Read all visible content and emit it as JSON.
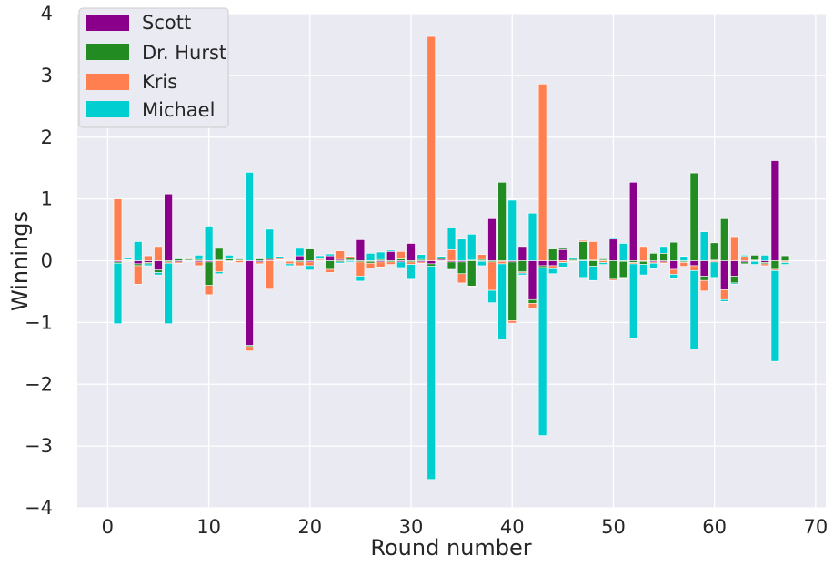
{
  "chart_data": {
    "type": "bar",
    "stacked": true,
    "xlabel": "Round number",
    "ylabel": "Winnings",
    "xlim": [
      -3,
      71
    ],
    "ylim": [
      -4,
      4
    ],
    "x_ticks": [
      0,
      10,
      20,
      30,
      40,
      50,
      60,
      70
    ],
    "y_ticks": [
      -4,
      -3,
      -2,
      -1,
      0,
      1,
      2,
      3,
      4
    ],
    "x_tick_labels": [
      "0",
      "10",
      "20",
      "30",
      "40",
      "50",
      "60",
      "70"
    ],
    "y_tick_labels": [
      "−4",
      "−3",
      "−2",
      "−1",
      "0",
      "1",
      "2",
      "3",
      "4"
    ],
    "grid": true,
    "legend_position": "top-left",
    "rounds": [
      1,
      2,
      3,
      4,
      5,
      6,
      7,
      8,
      9,
      10,
      11,
      12,
      13,
      14,
      15,
      16,
      17,
      18,
      19,
      20,
      21,
      22,
      23,
      24,
      25,
      26,
      27,
      28,
      29,
      30,
      31,
      32,
      33,
      34,
      35,
      36,
      37,
      38,
      39,
      40,
      41,
      42,
      43,
      44,
      45,
      46,
      47,
      48,
      49,
      50,
      51,
      52,
      53,
      54,
      55,
      56,
      57,
      58,
      59,
      60,
      61,
      62,
      63,
      64,
      65,
      66,
      67
    ],
    "series": [
      {
        "name": "Scott",
        "color": "#8b008b",
        "values": [
          -0.02,
          0.01,
          -0.05,
          -0.03,
          -0.15,
          1.08,
          -0.02,
          0.01,
          -0.02,
          -0.02,
          0.01,
          -0.01,
          0.01,
          -1.37,
          -0.02,
          0.02,
          0.01,
          -0.01,
          0.08,
          -0.02,
          0.01,
          0.08,
          0.02,
          0.01,
          0.34,
          -0.01,
          -0.02,
          0.15,
          -0.02,
          0.28,
          -0.02,
          -0.05,
          0.02,
          -0.02,
          -0.02,
          0.01,
          -0.01,
          0.68,
          -0.01,
          -0.02,
          0.23,
          -0.63,
          -0.08,
          -0.08,
          0.18,
          -0.01,
          0.01,
          0.01,
          0.01,
          0.35,
          -0.01,
          1.27,
          -0.01,
          -0.02,
          -0.02,
          -0.14,
          -0.01,
          -0.08,
          -0.25,
          0.01,
          -0.47,
          -0.25,
          -0.02,
          0.01,
          -0.03,
          1.62,
          -0.01
        ]
      },
      {
        "name": "Dr. Hurst",
        "color": "#228b22",
        "values": [
          -0.02,
          0.01,
          -0.03,
          -0.02,
          -0.04,
          -0.02,
          0.03,
          0.02,
          0.02,
          -0.38,
          0.19,
          0.03,
          0.02,
          -0.02,
          0.03,
          0.02,
          0.01,
          0.01,
          -0.02,
          0.19,
          -0.01,
          -0.14,
          -0.02,
          0.03,
          -0.02,
          -0.03,
          0.02,
          -0.02,
          0.03,
          -0.02,
          0.02,
          -0.04,
          0.02,
          -0.12,
          -0.19,
          -0.41,
          0.02,
          -0.02,
          1.27,
          -0.95,
          -0.18,
          -0.06,
          -0.03,
          0.19,
          0.02,
          0.02,
          0.3,
          -0.09,
          0.02,
          -0.3,
          -0.26,
          -0.03,
          -0.05,
          0.12,
          0.12,
          0.3,
          -0.02,
          1.42,
          -0.07,
          0.28,
          0.68,
          -0.11,
          -0.03,
          0.08,
          -0.02,
          -0.14,
          0.08
        ]
      },
      {
        "name": "Kris",
        "color": "#ff7f50",
        "values": [
          1.0,
          -0.01,
          -0.3,
          0.08,
          0.23,
          -0.02,
          -0.02,
          0.02,
          -0.06,
          -0.15,
          -0.18,
          -0.01,
          -0.03,
          -0.07,
          -0.03,
          -0.46,
          0.02,
          -0.04,
          -0.06,
          -0.06,
          0.02,
          -0.05,
          0.14,
          0.03,
          -0.23,
          -0.08,
          -0.08,
          -0.04,
          0.12,
          -0.04,
          -0.02,
          3.63,
          -0.01,
          0.18,
          -0.15,
          -0.01,
          0.08,
          -0.46,
          -0.04,
          -0.04,
          -0.02,
          -0.08,
          2.86,
          -0.05,
          -0.03,
          -0.01,
          0.02,
          0.3,
          -0.03,
          -0.02,
          -0.02,
          -0.02,
          0.23,
          -0.02,
          -0.02,
          -0.08,
          -0.06,
          -0.08,
          -0.17,
          -0.02,
          -0.16,
          0.39,
          0.07,
          -0.01,
          -0.03,
          -0.02,
          -0.02
        ]
      },
      {
        "name": "Michael",
        "color": "#00ced1",
        "values": [
          -0.98,
          0.03,
          0.31,
          -0.03,
          -0.04,
          -0.98,
          0.02,
          -0.01,
          0.07,
          0.56,
          -0.03,
          0.06,
          0.02,
          1.43,
          0.02,
          0.47,
          0.03,
          -0.03,
          0.12,
          -0.07,
          0.05,
          0.03,
          -0.02,
          -0.02,
          -0.08,
          0.12,
          0.12,
          0.02,
          -0.09,
          -0.24,
          0.08,
          -3.45,
          0.03,
          0.35,
          0.35,
          0.42,
          -0.07,
          -0.2,
          -1.22,
          0.98,
          -0.03,
          0.77,
          -2.72,
          -0.08,
          -0.07,
          0.03,
          -0.27,
          -0.23,
          -0.03,
          0.02,
          0.28,
          -1.2,
          -0.17,
          -0.09,
          0.11,
          -0.07,
          0.07,
          -1.27,
          0.47,
          -0.25,
          -0.03,
          -0.02,
          0.02,
          -0.05,
          0.09,
          -1.47,
          -0.03
        ]
      }
    ]
  }
}
